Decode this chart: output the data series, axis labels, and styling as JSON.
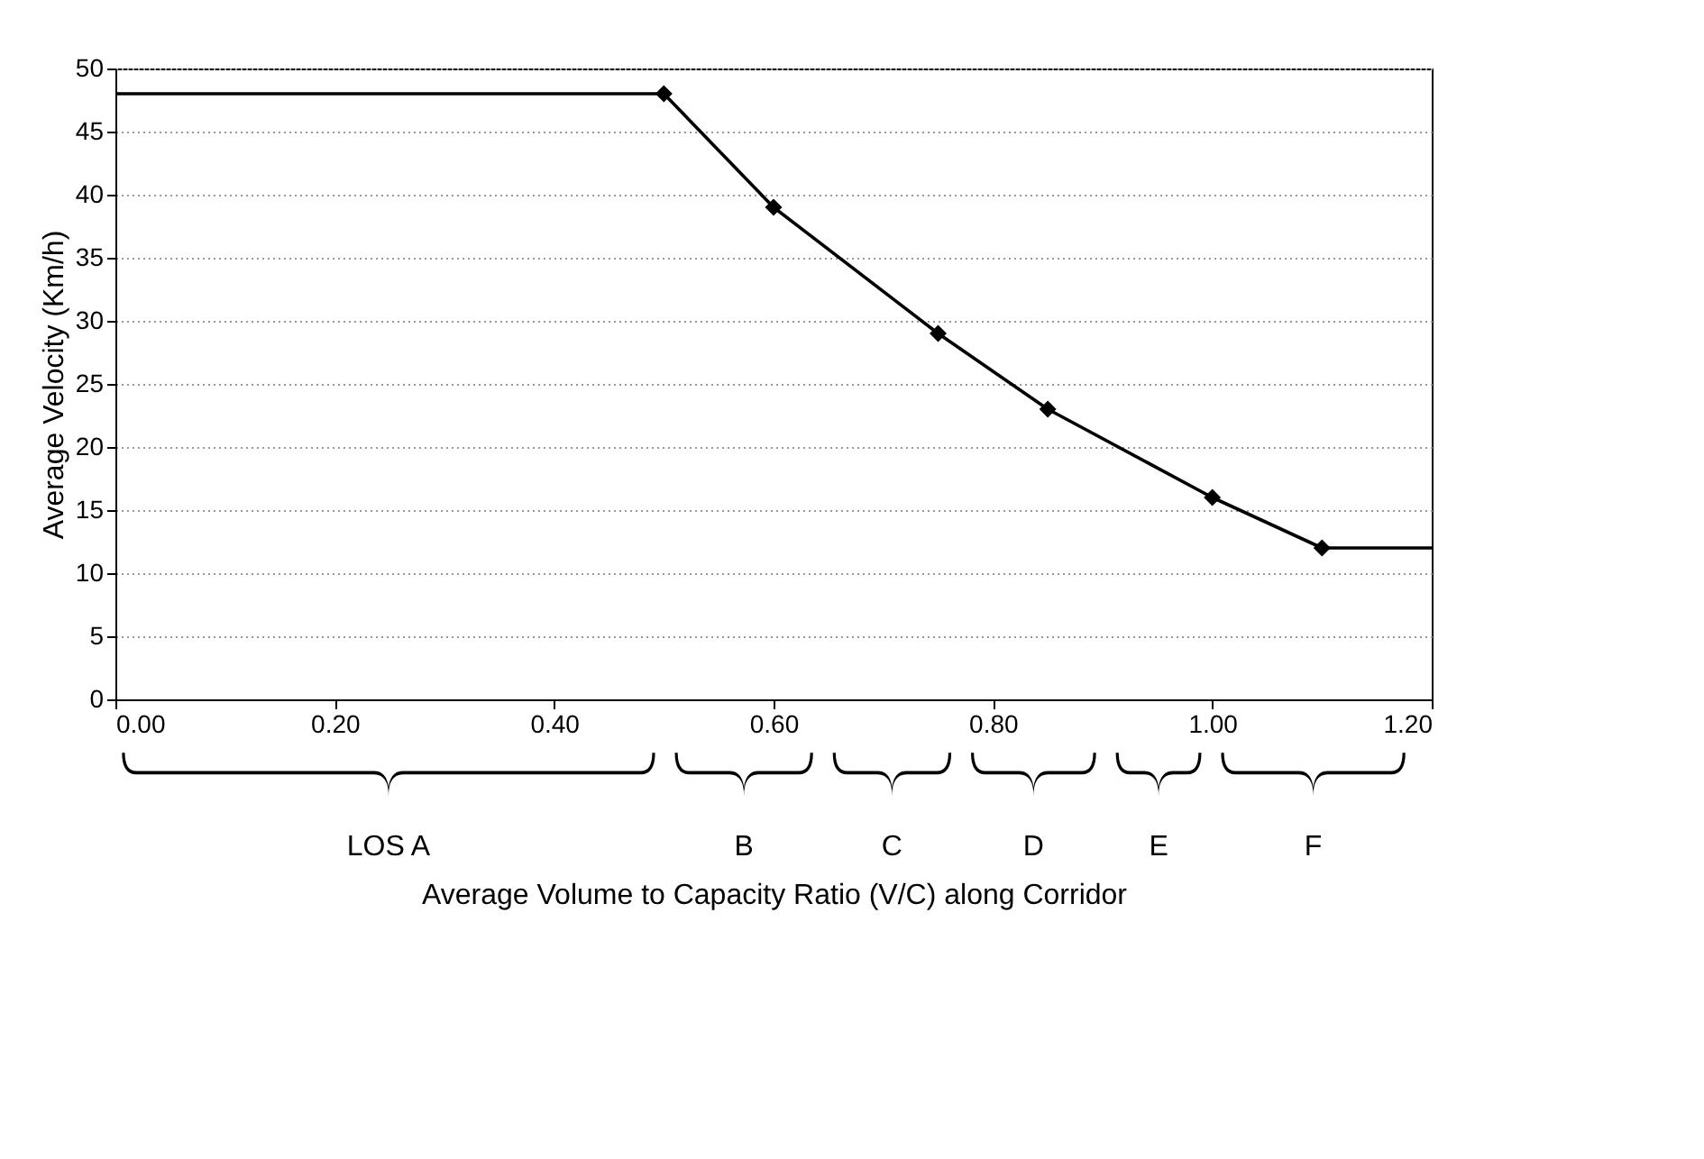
{
  "chart_data": {
    "type": "line",
    "xlabel": "Average Volume to Capacity Ratio (V/C) along Corridor",
    "ylabel": "Average Velocity (Km/h)",
    "xlim": [
      0,
      1.2
    ],
    "xticks": [
      {
        "value": 0,
        "label": "0.00"
      },
      {
        "value": 0.2,
        "label": "0.20"
      },
      {
        "value": 0.4,
        "label": "0.40"
      },
      {
        "value": 0.6,
        "label": "0.60"
      },
      {
        "value": 0.8,
        "label": "0.80"
      },
      {
        "value": 1.0,
        "label": "1.00"
      },
      {
        "value": 1.2,
        "label": "1.20"
      }
    ],
    "ylim": [
      0,
      50
    ],
    "yticks": [
      0,
      5,
      10,
      15,
      20,
      25,
      30,
      35,
      40,
      45,
      50
    ],
    "grid": "y",
    "series": [
      {
        "color": "#000000",
        "marker": "none",
        "x": [
          0,
          0.5,
          0.6,
          0.75,
          0.85,
          1.0,
          1.1,
          1.2
        ],
        "values": [
          48,
          48,
          39,
          29,
          23,
          16,
          12,
          12
        ]
      },
      {
        "type": "scatter",
        "color": "#000000",
        "marker": "diamond",
        "x": [
          0.5,
          0.6,
          0.75,
          0.85,
          1.0,
          1.1
        ],
        "values": [
          48,
          39,
          29,
          23,
          16,
          12
        ]
      }
    ],
    "annotations": [
      "LOS A",
      "B",
      "C",
      "D",
      "E",
      "F"
    ]
  }
}
